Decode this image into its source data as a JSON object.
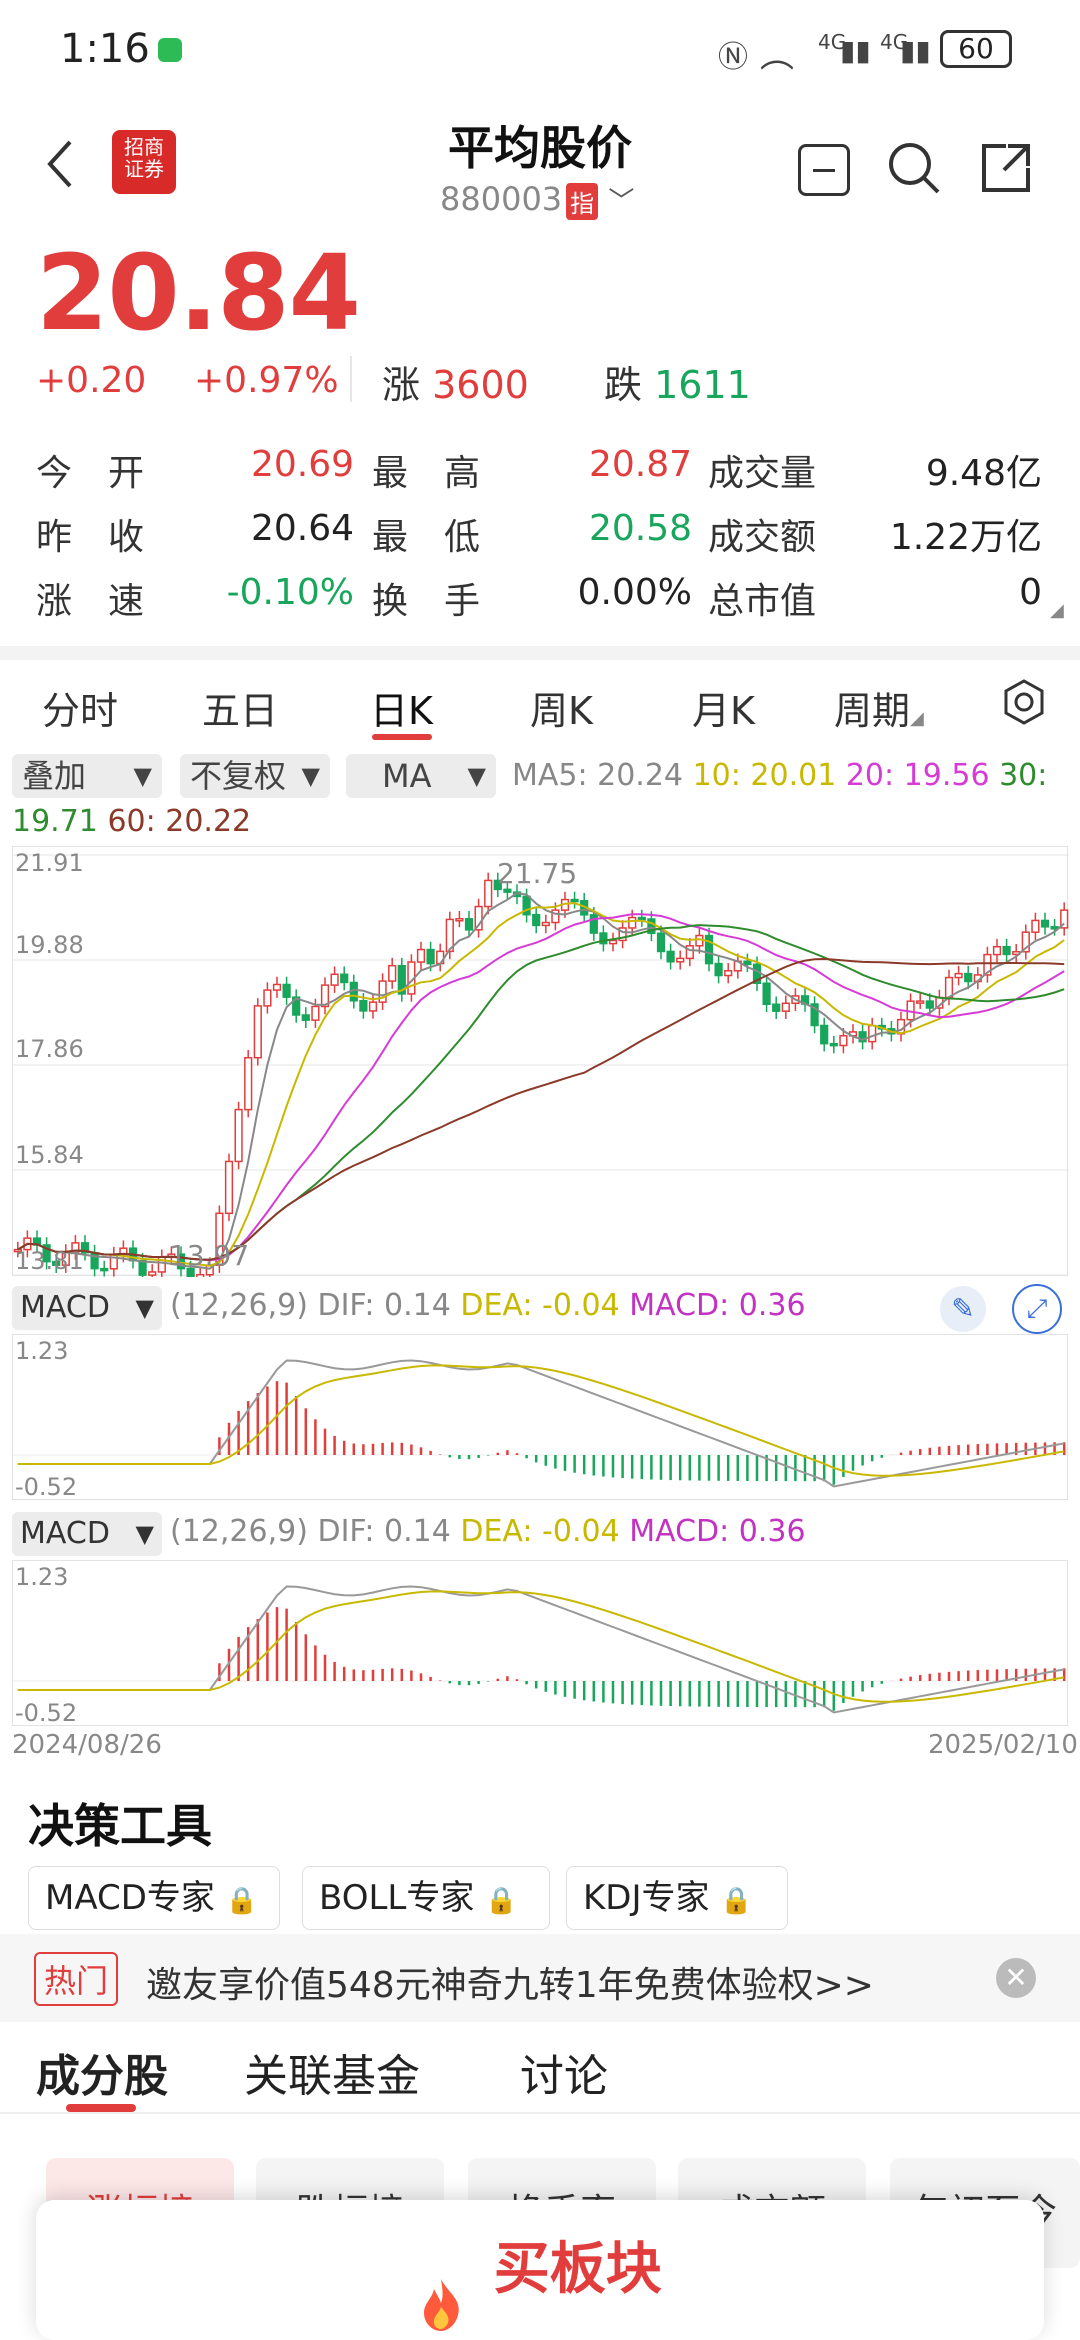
{
  "status": {
    "time": "1:16",
    "battery": "60",
    "net1": "4G",
    "net2": "4G"
  },
  "header": {
    "title": "平均股价",
    "code": "880003",
    "badge": "指"
  },
  "price": {
    "last": "20.84",
    "change": "+0.20",
    "pct": "+0.97%",
    "up_label": "涨",
    "up_count": "3600",
    "down_label": "跌",
    "down_count": "1611"
  },
  "quote": {
    "open_label": "今　开",
    "open": "20.69",
    "high_label": "最　高",
    "high": "20.87",
    "vol_label": "成交量",
    "vol": "9.48亿",
    "prev_label": "昨　收",
    "prev": "20.64",
    "low_label": "最　低",
    "low": "20.58",
    "amt_label": "成交额",
    "amt": "1.22万亿",
    "speed_label": "涨　速",
    "speed": "-0.10%",
    "turn_label": "换　手",
    "turn": "0.00%",
    "cap_label": "总市值",
    "cap": "0"
  },
  "tabs": [
    "分时",
    "五日",
    "日K",
    "周K",
    "月K",
    "周期"
  ],
  "chips": {
    "overlay": "叠加",
    "adjust": "不复权",
    "ma": "MA"
  },
  "ma_line": {
    "ma5": "MA5: 20.24",
    "ma10": "10: 20.01",
    "ma20": "20: 19.56",
    "ma30": "30:",
    "ma30v": "19.71",
    "ma60": "60: 20.22"
  },
  "kline_axis": {
    "y1": "21.91",
    "y2": "19.88",
    "y3": "17.86",
    "y4": "15.84",
    "y5": "13.81",
    "high_mark": "21.75",
    "low_mark": "13.97"
  },
  "macd1": {
    "name": "MACD",
    "params": "(12,26,9)",
    "dif": "DIF: 0.14",
    "dea": "DEA: -0.04",
    "macd": "MACD: 0.36",
    "top": "1.23",
    "bottom": "-0.52"
  },
  "macd2": {
    "name": "MACD",
    "params": "(12,26,9)",
    "dif": "DIF: 0.14",
    "dea": "DEA: -0.04",
    "macd": "MACD: 0.36",
    "top": "1.23",
    "bottom": "-0.52"
  },
  "dates": {
    "start": "2024/08/26",
    "end": "2025/02/10"
  },
  "tools": {
    "title": "决策工具",
    "items": [
      "MACD专家",
      "BOLL专家",
      "KDJ专家"
    ]
  },
  "promo": {
    "tag": "热门",
    "text": "邀友享价值548元神奇九转1年免费体验权>>"
  },
  "bottom_tabs": [
    "成分股",
    "关联基金",
    "讨论"
  ],
  "rank_tabs": [
    "涨幅榜",
    "跌幅榜",
    "换手率",
    "成交额",
    "年初至今"
  ],
  "buy": {
    "label": "买板块"
  },
  "colors": {
    "up": "#e23d3d",
    "down": "#17a65b",
    "ma5": "#888888",
    "ma10": "#c9b800",
    "ma20": "#d63bd6",
    "ma30": "#2e8b2e",
    "ma60": "#8b3a2a"
  }
}
